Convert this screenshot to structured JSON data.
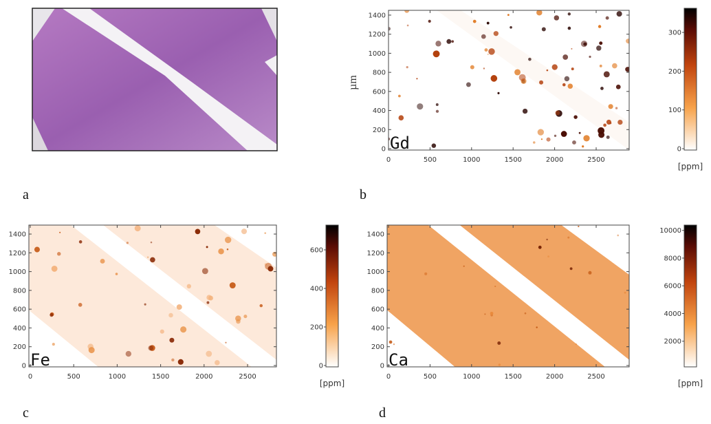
{
  "panels": [
    {
      "label": "a"
    },
    {
      "label": "b",
      "element": "Gd",
      "y_axis_label": "µm",
      "x_ticks": [
        0,
        500,
        1000,
        1500,
        2000,
        2500
      ],
      "y_ticks": [
        0,
        200,
        400,
        600,
        800,
        1000,
        1200,
        1400
      ],
      "colorbar_ticks": [
        0,
        100,
        200,
        300
      ],
      "unit": "[ppm]"
    },
    {
      "label": "c",
      "element": "Fe",
      "x_ticks": [
        0,
        500,
        1000,
        1500,
        2000,
        2500
      ],
      "y_ticks": [
        0,
        200,
        400,
        600,
        800,
        1000,
        1200,
        1400
      ],
      "colorbar_ticks": [
        0,
        200,
        400,
        600
      ],
      "unit": "[ppm]"
    },
    {
      "label": "d",
      "element": "Ca",
      "x_ticks": [
        0,
        500,
        1000,
        1500,
        2000,
        2500
      ],
      "y_ticks": [
        0,
        200,
        400,
        600,
        800,
        1000,
        1200,
        1400
      ],
      "colorbar_ticks": [
        2000,
        4000,
        6000,
        8000,
        10000
      ],
      "unit": "[ppm]"
    }
  ]
}
